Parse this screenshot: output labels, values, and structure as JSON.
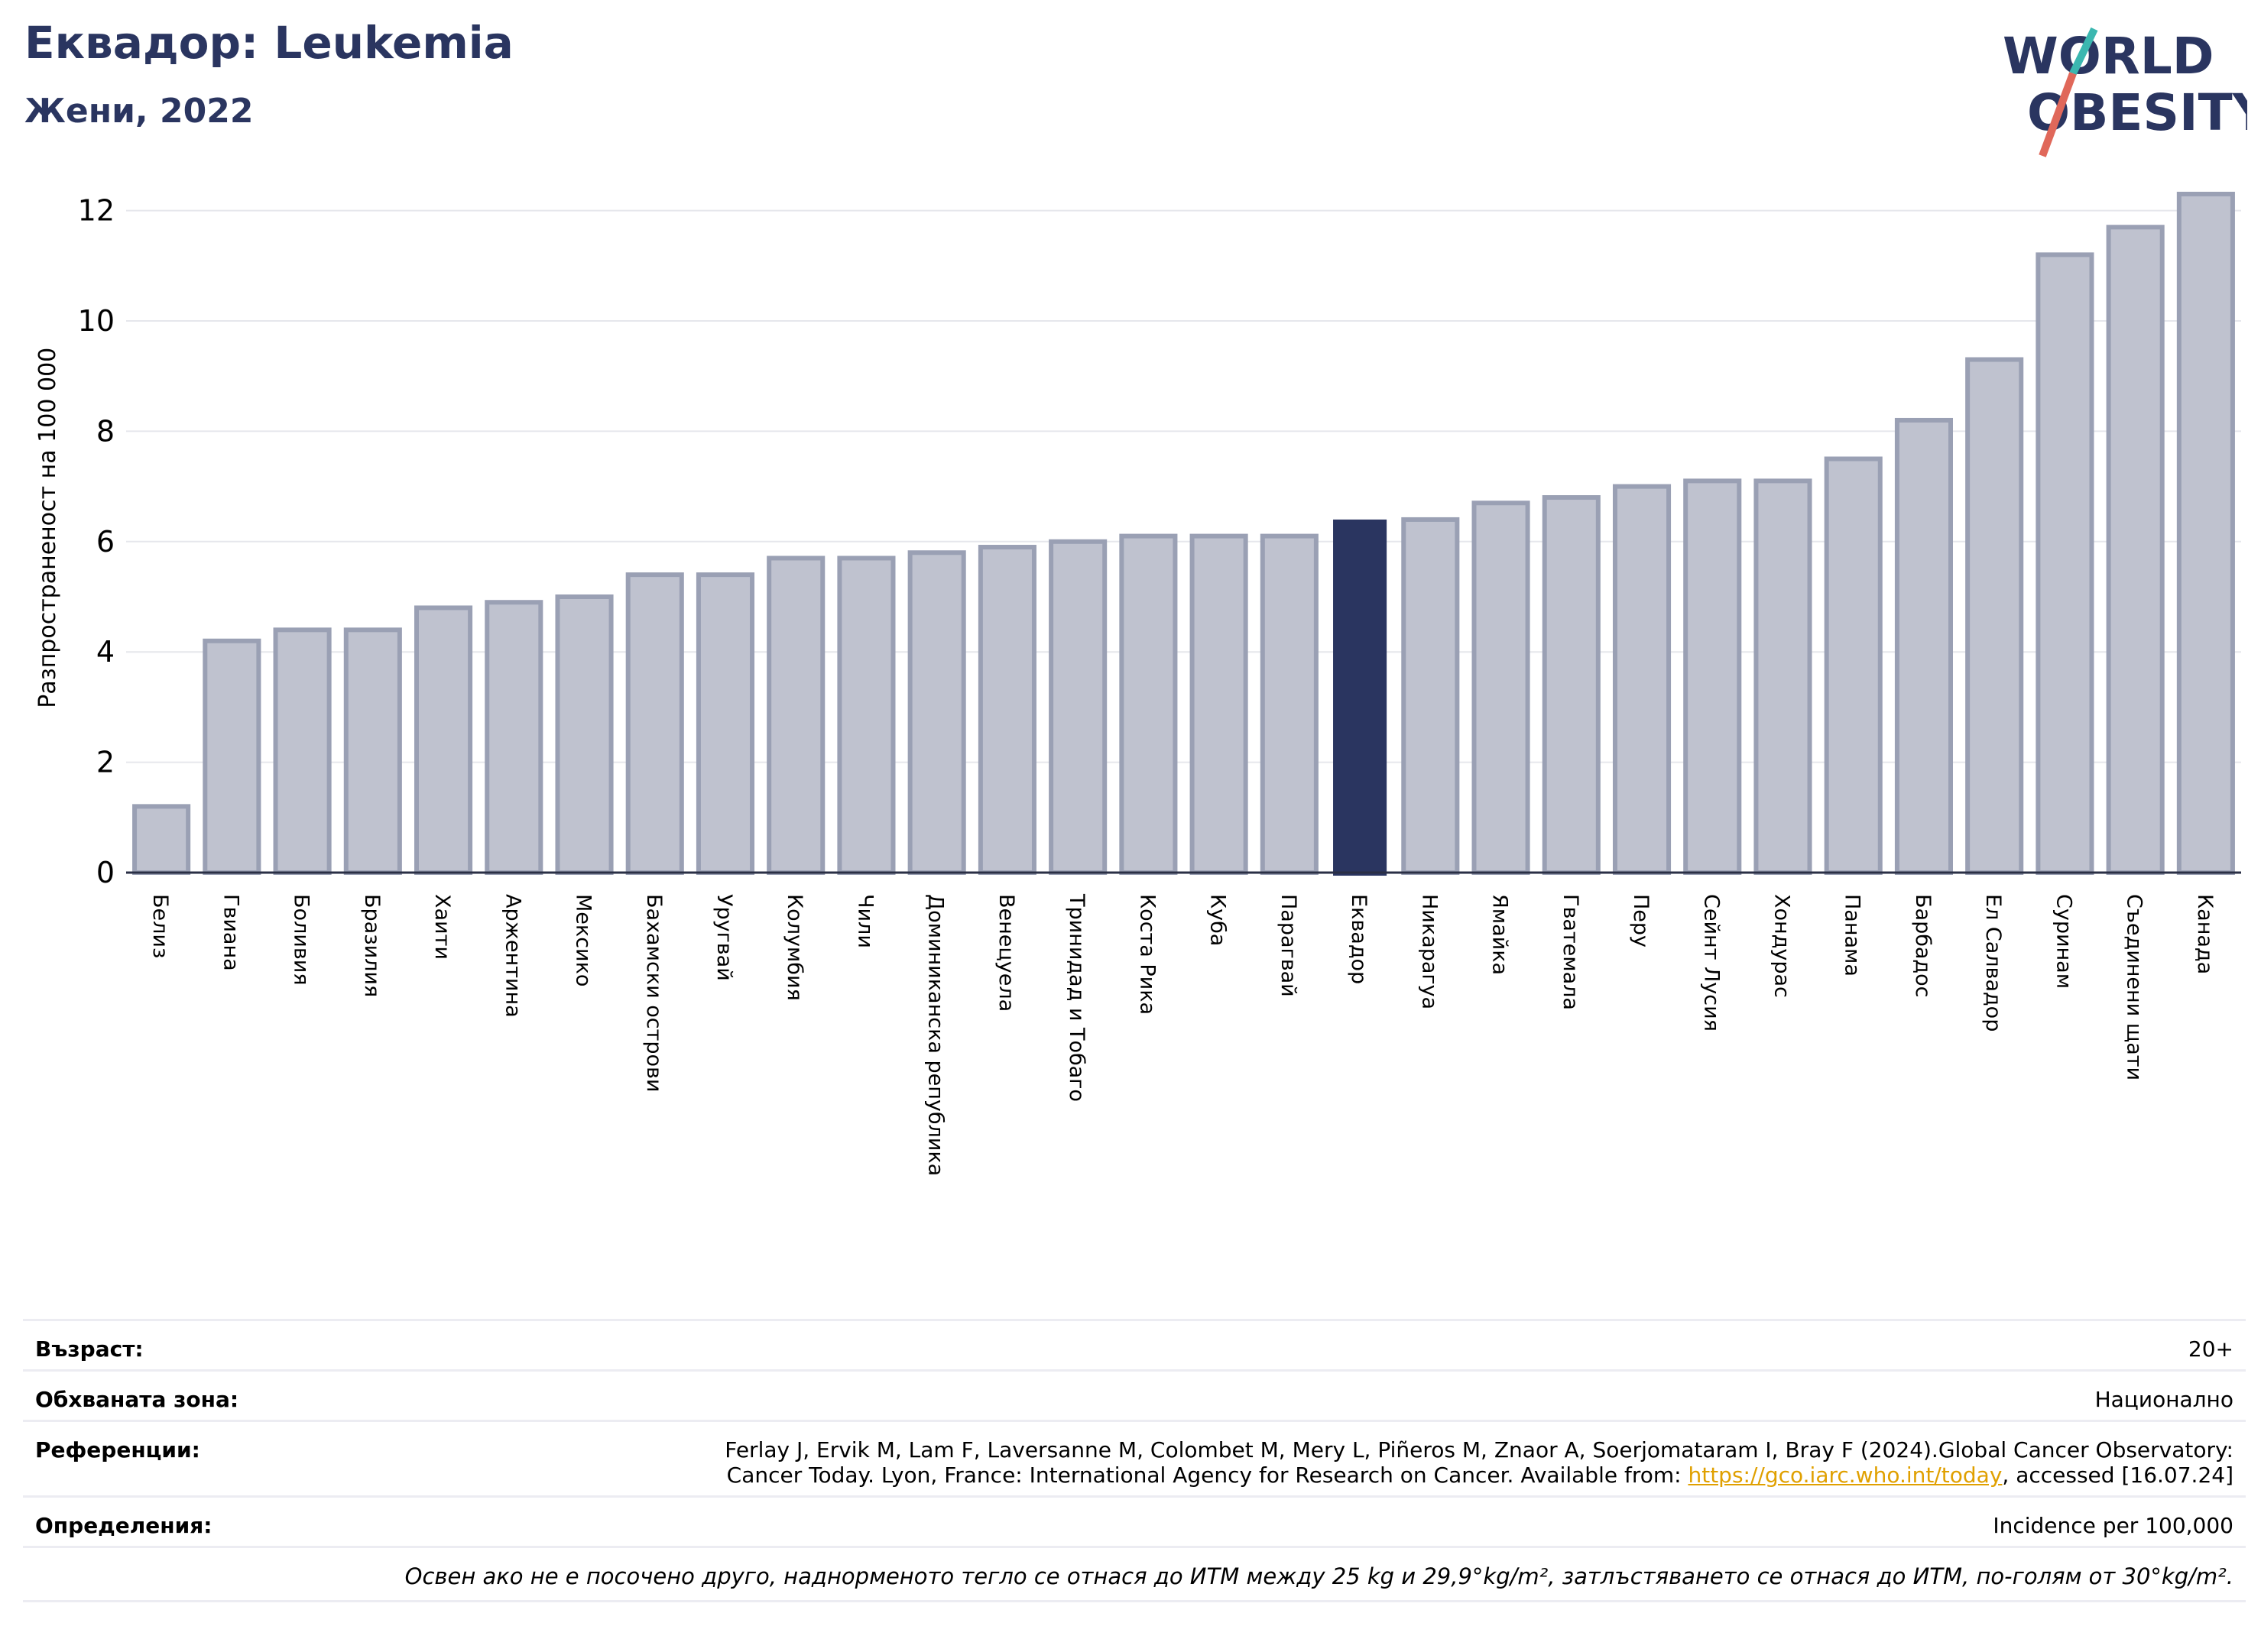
{
  "header": {
    "title": "Еквадор: Leukemia",
    "subtitle": "Жени, 2022"
  },
  "logo": {
    "line1": "WORLD",
    "line2": "OBESITY"
  },
  "chart_data": {
    "type": "bar",
    "title": "Еквадор: Leukemia",
    "subtitle": "Жени, 2022",
    "ylabel": "Разпространеност  на 100 000",
    "xlabel": "",
    "ylim": [
      0,
      12.5
    ],
    "yticks": [
      0,
      2,
      4,
      6,
      8,
      10,
      12
    ],
    "grid": true,
    "highlight": "Еквадор",
    "colors": {
      "bar": "#bfc2cf",
      "bar_edge": "#9aa0b4",
      "highlight": "#2a3560",
      "grid": "#e6e7ec"
    },
    "categories": [
      "Белиз",
      "Гвиана",
      "Боливия",
      "Бразилия",
      "Хаити",
      "Аржентина",
      "Мексико",
      "Бахамски острови",
      "Уругвай",
      "Колумбия",
      "Чили",
      "Доминиканска република",
      "Венецуела",
      "Тринидад и Тобаго",
      "Коста Рика",
      "Куба",
      "Парагвай",
      "Еквадор",
      "Никарагуа",
      "Ямайка",
      "Гватемала",
      "Перу",
      "Сейнт Лусия",
      "Хондурас",
      "Панама",
      "Барбадос",
      "Ел Салвадор",
      "Суринам",
      "Съединени щати",
      "Канада"
    ],
    "values": [
      1.2,
      4.2,
      4.4,
      4.4,
      4.8,
      4.9,
      5.0,
      5.4,
      5.4,
      5.7,
      5.7,
      5.8,
      5.9,
      6.0,
      6.1,
      6.1,
      6.1,
      6.4,
      6.4,
      6.7,
      6.8,
      7.0,
      7.1,
      7.1,
      7.5,
      8.2,
      9.3,
      11.2,
      11.7,
      12.3
    ]
  },
  "info": {
    "age_label": "Възраст:",
    "age_value": "20+",
    "coverage_label": "Обхваната зона:",
    "coverage_value": "Национално",
    "references_label": "Референции:",
    "references_line1": "Ferlay J, Ervik M, Lam F, Laversanne M, Colombet M, Mery L, Piñeros M, Znaor A, Soerjomataram I, Bray F (2024).Global Cancer Observatory:",
    "references_line2_before": "Cancer Today. Lyon, France: International Agency for Research on Cancer. Available from: ",
    "references_link": "https://gco.iarc.who.int/today",
    "references_line2_after": ", accessed [16.07.24]",
    "definitions_label": "Определения:",
    "definitions_value": "Incidence per 100,000",
    "note": "Освен ако не е посочено друго, наднорменото тегло се отнася до ИТМ между 25 kg и 29,9°kg/m², затлъстяването се отнася до ИТМ, по-голям от 30°kg/m²."
  }
}
